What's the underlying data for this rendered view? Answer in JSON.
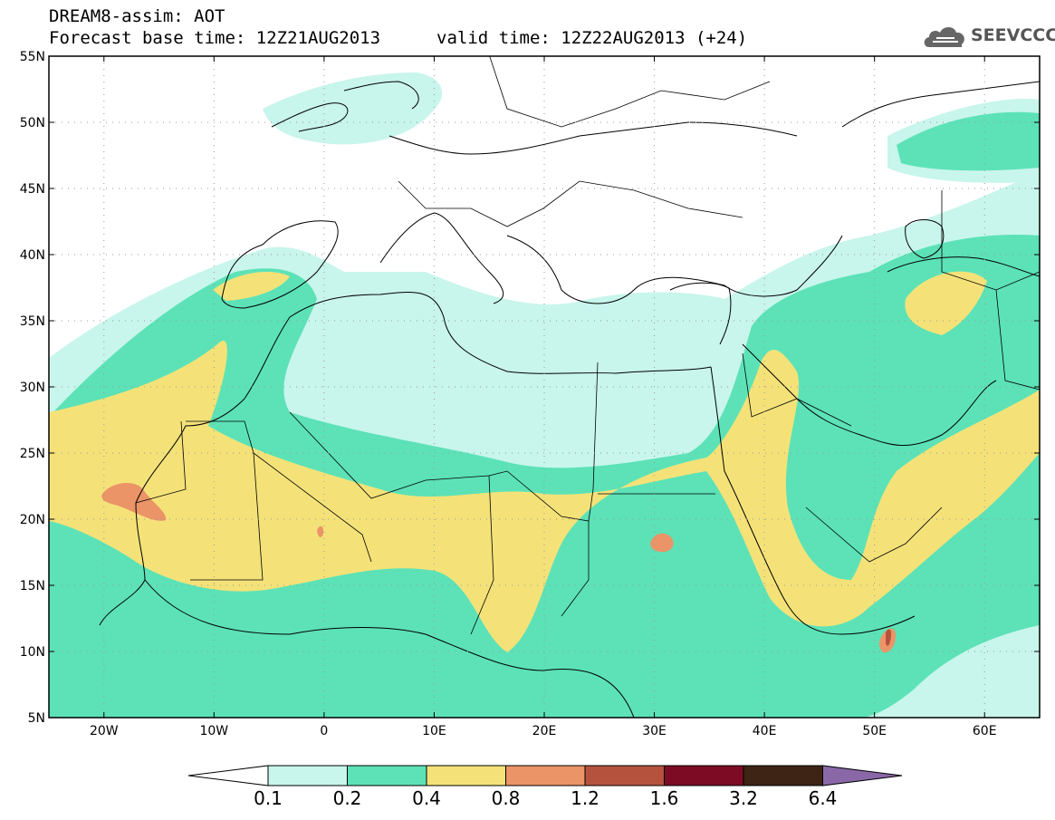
{
  "header": {
    "line1": "DREAM8-assim: AOT",
    "line2_base": "Forecast base time: 12Z21AUG2013",
    "line2_valid": "valid time: 12Z22AUG2013 (+24)"
  },
  "logo": {
    "text": "SEEVCCC",
    "icon": "cloud-logo-icon"
  },
  "axes": {
    "lat_labels": [
      "55N",
      "50N",
      "45N",
      "40N",
      "35N",
      "30N",
      "25N",
      "20N",
      "15N",
      "10N",
      "5N"
    ],
    "lat_values": [
      55,
      50,
      45,
      40,
      35,
      30,
      25,
      20,
      15,
      10,
      5
    ],
    "lon_labels": [
      "20W",
      "10W",
      "0",
      "10E",
      "20E",
      "30E",
      "40E",
      "50E",
      "60E"
    ],
    "lon_values": [
      -20,
      -10,
      0,
      10,
      20,
      30,
      40,
      50,
      60
    ],
    "lon_range": [
      -25,
      65
    ],
    "lat_range": [
      5,
      55
    ],
    "grid": "dotted"
  },
  "legend": {
    "labels": [
      "0.1",
      "0.2",
      "0.4",
      "0.8",
      "1.2",
      "1.6",
      "3.2",
      "6.4"
    ],
    "colors": [
      "#c8f5ec",
      "#5ce2b6",
      "#f4e279",
      "#eb9467",
      "#b5523d",
      "#7c0b23",
      "#3d2414",
      "#8a68a8"
    ],
    "under_color": "#ffffff"
  },
  "field_colors": {
    "c01": "#c8f5ec",
    "c02": "#5ce2b6",
    "c04": "#f4e279",
    "c08": "#eb9467",
    "c12": "#b5523d"
  }
}
